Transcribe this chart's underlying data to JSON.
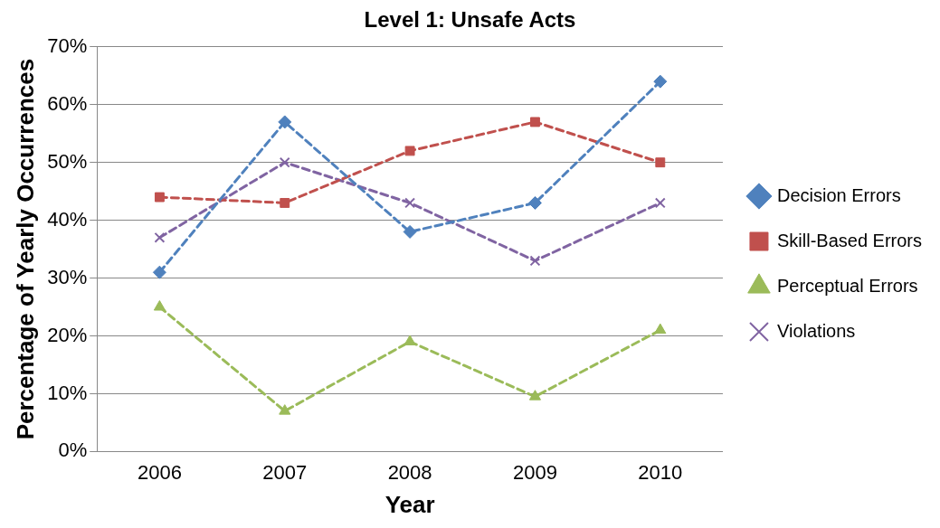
{
  "chart_data": {
    "type": "line",
    "title": "Level 1: Unsafe Acts",
    "xlabel": "Year",
    "ylabel": "Percentage of Yearly Occurrences",
    "categories": [
      "2006",
      "2007",
      "2008",
      "2009",
      "2010"
    ],
    "series": [
      {
        "name": "Decision Errors",
        "color": "#4f81bd",
        "marker": "diamond",
        "values": [
          31,
          57,
          38,
          43,
          64
        ]
      },
      {
        "name": "Skill-Based Errors",
        "color": "#c0504d",
        "marker": "square",
        "values": [
          44,
          43,
          52,
          57,
          50
        ]
      },
      {
        "name": "Perceptual Errors",
        "color": "#9bbb59",
        "marker": "triangle",
        "values": [
          25,
          7,
          19,
          9.5,
          21
        ]
      },
      {
        "name": "Violations",
        "color": "#8064a2",
        "marker": "cross",
        "values": [
          37,
          50,
          43,
          33,
          43
        ]
      }
    ],
    "ylim": [
      0,
      70
    ],
    "yticks": [
      {
        "value": 0,
        "label": "0%"
      },
      {
        "value": 10,
        "label": "10%"
      },
      {
        "value": 20,
        "label": "20%"
      },
      {
        "value": 30,
        "label": "30%"
      },
      {
        "value": 40,
        "label": "40%"
      },
      {
        "value": 50,
        "label": "50%"
      },
      {
        "value": 60,
        "label": "60%"
      },
      {
        "value": 70,
        "label": "70%"
      }
    ],
    "grid": "y",
    "legend": "right",
    "line_style": "dashed"
  }
}
